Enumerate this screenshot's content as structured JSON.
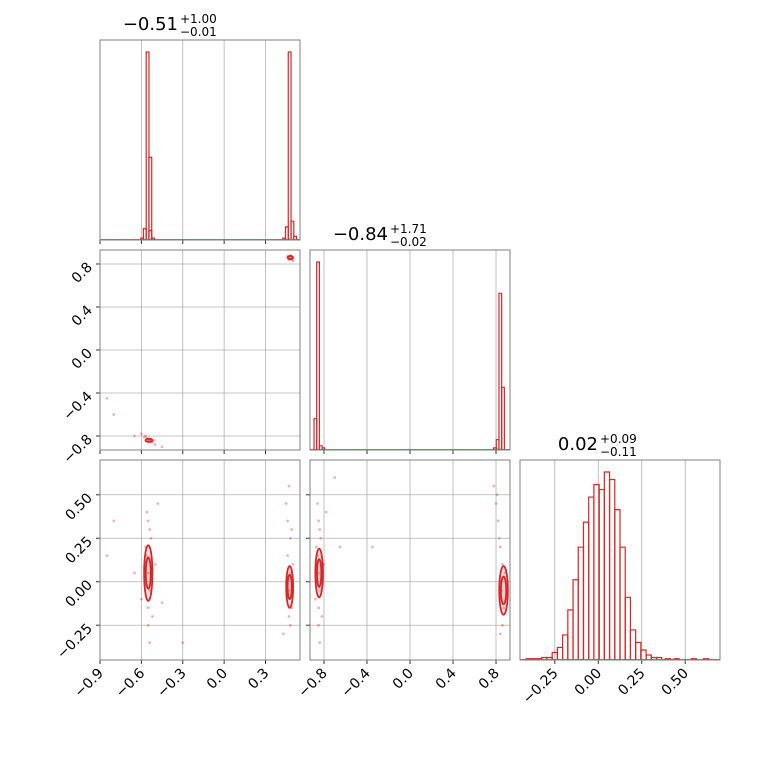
{
  "chart_data": {
    "type": "corner",
    "color": "#d62728",
    "grid": true,
    "parameters": [
      {
        "title": {
          "median": "−0.51",
          "upper": "+1.00",
          "lower": "−0.01"
        },
        "range": [
          -0.9,
          0.55
        ],
        "ticks": [
          -0.9,
          -0.6,
          -0.3,
          0.0,
          0.3
        ],
        "tick_labels": [
          "−0.9",
          "−0.6",
          "−0.3",
          "0.0",
          "0.3"
        ]
      },
      {
        "title": {
          "median": "−0.84",
          "upper": "+1.71",
          "lower": "−0.02"
        },
        "range": [
          -0.93,
          0.93
        ],
        "ticks": [
          -0.8,
          -0.4,
          0.0,
          0.4,
          0.8
        ],
        "tick_labels": [
          "−0.8",
          "−0.4",
          "0.0",
          "0.4",
          "0.8"
        ]
      },
      {
        "title": {
          "median": "0.02",
          "upper": "+0.09",
          "lower": "−0.11"
        },
        "range": [
          -0.45,
          0.7
        ],
        "ticks": [
          -0.25,
          0.0,
          0.25,
          0.5
        ],
        "tick_labels": [
          "−0.25",
          "0.00",
          "0.25",
          "0.50"
        ]
      }
    ],
    "histograms": [
      {
        "param": 0,
        "bins": [
          [
            -0.535,
            0.05
          ],
          [
            -0.555,
            1.0
          ],
          [
            -0.535,
            0.44
          ],
          [
            -0.515,
            0.01
          ],
          [
            -0.575,
            0.06
          ],
          [
            -0.595,
            0.01
          ],
          [
            0.455,
            0.07
          ],
          [
            0.475,
            1.0
          ],
          [
            0.495,
            0.1
          ],
          [
            0.515,
            0.02
          ],
          [
            0.435,
            0.01
          ]
        ]
      },
      {
        "param": 1,
        "bins": [
          [
            -0.88,
            0.15
          ],
          [
            -0.855,
            0.9
          ],
          [
            -0.83,
            0.02
          ],
          [
            -0.805,
            0.01
          ],
          [
            0.79,
            0.01
          ],
          [
            0.815,
            0.05
          ],
          [
            0.84,
            0.75
          ],
          [
            0.865,
            0.3
          ]
        ]
      },
      {
        "param": 2,
        "bins": [
          [
            -0.4,
            0.005
          ],
          [
            -0.37,
            0.005
          ],
          [
            -0.34,
            0.005
          ],
          [
            -0.31,
            0.01
          ],
          [
            -0.28,
            0.01
          ],
          [
            -0.25,
            0.03
          ],
          [
            -0.22,
            0.05
          ],
          [
            -0.19,
            0.1
          ],
          [
            -0.16,
            0.2
          ],
          [
            -0.13,
            0.32
          ],
          [
            -0.1,
            0.45
          ],
          [
            -0.07,
            0.55
          ],
          [
            -0.04,
            0.65
          ],
          [
            -0.01,
            0.7
          ],
          [
            0.02,
            0.68
          ],
          [
            0.05,
            0.75
          ],
          [
            0.08,
            0.72
          ],
          [
            0.11,
            0.6
          ],
          [
            0.14,
            0.45
          ],
          [
            0.17,
            0.25
          ],
          [
            0.2,
            0.12
          ],
          [
            0.23,
            0.07
          ],
          [
            0.26,
            0.04
          ],
          [
            0.29,
            0.02
          ],
          [
            0.32,
            0.01
          ],
          [
            0.35,
            0.01
          ],
          [
            0.4,
            0.005
          ],
          [
            0.45,
            0.005
          ],
          [
            0.55,
            0.005
          ],
          [
            0.62,
            0.005
          ]
        ]
      }
    ],
    "scatter_panels": [
      {
        "x_param": 0,
        "y_param": 1,
        "points": [
          [
            -0.55,
            -0.83
          ],
          [
            -0.54,
            -0.84
          ],
          [
            -0.56,
            -0.82
          ],
          [
            -0.53,
            -0.85
          ],
          [
            -0.52,
            -0.86
          ],
          [
            -0.57,
            -0.8
          ],
          [
            -0.6,
            -0.78
          ],
          [
            -0.5,
            -0.88
          ],
          [
            -0.45,
            -0.9
          ],
          [
            -0.58,
            -0.81
          ],
          [
            -0.55,
            -0.85
          ],
          [
            -0.54,
            -0.83
          ],
          [
            -0.51,
            -0.84
          ],
          [
            0.47,
            0.86
          ],
          [
            0.48,
            0.85
          ],
          [
            0.49,
            0.84
          ],
          [
            0.46,
            0.87
          ],
          [
            0.5,
            0.83
          ],
          [
            0.48,
            0.88
          ],
          [
            0.47,
            0.84
          ],
          [
            0.49,
            0.86
          ],
          [
            -0.85,
            -0.45
          ],
          [
            -0.8,
            -0.6
          ],
          [
            -0.65,
            -0.8
          ]
        ],
        "contours": [
          {
            "center": [
              -0.545,
              -0.84
            ],
            "radii": [
              0.025,
              0.015
            ]
          },
          {
            "center": [
              0.48,
              0.86
            ],
            "radii": [
              0.02,
              0.015
            ]
          }
        ]
      },
      {
        "x_param": 0,
        "y_param": 2,
        "points": [
          [
            -0.55,
            0.05
          ],
          [
            -0.54,
            -0.05
          ],
          [
            -0.56,
            0.15
          ],
          [
            -0.53,
            0.25
          ],
          [
            -0.55,
            -0.15
          ],
          [
            -0.54,
            0.3
          ],
          [
            -0.57,
            0.2
          ],
          [
            -0.52,
            -0.2
          ],
          [
            -0.55,
            0.35
          ],
          [
            -0.6,
            -0.1
          ],
          [
            -0.5,
            0.1
          ],
          [
            -0.45,
            -0.12
          ],
          [
            -0.55,
            -0.25
          ],
          [
            -0.56,
            0.4
          ],
          [
            -0.54,
            -0.35
          ],
          [
            -0.65,
            0.05
          ],
          [
            -0.8,
            0.35
          ],
          [
            -0.85,
            0.15
          ],
          [
            -0.48,
            0.45
          ],
          [
            -0.3,
            -0.35
          ],
          [
            0.47,
            -0.05
          ],
          [
            0.48,
            0.05
          ],
          [
            0.46,
            0.15
          ],
          [
            0.49,
            -0.15
          ],
          [
            0.48,
            0.25
          ],
          [
            0.47,
            -0.2
          ],
          [
            0.5,
            0.1
          ],
          [
            0.46,
            0.35
          ],
          [
            0.47,
            0.55
          ],
          [
            0.48,
            -0.25
          ],
          [
            0.45,
            0.45
          ],
          [
            0.49,
            0.3
          ],
          [
            0.43,
            -0.3
          ]
        ],
        "contours": [
          {
            "center": [
              -0.55,
              0.05
            ],
            "radii": [
              0.03,
              0.16
            ]
          },
          {
            "center": [
              -0.55,
              0.05
            ],
            "radii": [
              0.018,
              0.09
            ]
          },
          {
            "center": [
              0.475,
              -0.03
            ],
            "radii": [
              0.025,
              0.12
            ]
          },
          {
            "center": [
              0.475,
              -0.03
            ],
            "radii": [
              0.015,
              0.07
            ]
          }
        ]
      },
      {
        "x_param": 1,
        "y_param": 2,
        "points": [
          [
            -0.85,
            0.05
          ],
          [
            -0.84,
            -0.05
          ],
          [
            -0.86,
            0.15
          ],
          [
            -0.83,
            0.25
          ],
          [
            -0.85,
            -0.15
          ],
          [
            -0.84,
            0.3
          ],
          [
            -0.87,
            0.2
          ],
          [
            -0.82,
            -0.2
          ],
          [
            -0.85,
            0.35
          ],
          [
            -0.88,
            -0.1
          ],
          [
            -0.8,
            0.1
          ],
          [
            -0.78,
            0.4
          ],
          [
            -0.85,
            -0.25
          ],
          [
            -0.86,
            0.45
          ],
          [
            -0.84,
            -0.35
          ],
          [
            -0.65,
            0.2
          ],
          [
            -0.7,
            0.6
          ],
          [
            -0.35,
            0.2
          ],
          [
            0.8,
            0.45
          ],
          [
            0.82,
            0.35
          ],
          [
            0.84,
            0.2
          ],
          [
            0.86,
            0.1
          ],
          [
            0.85,
            -0.05
          ],
          [
            0.87,
            -0.15
          ],
          [
            0.83,
            0.25
          ],
          [
            0.86,
            -0.25
          ],
          [
            0.88,
            0.05
          ],
          [
            0.84,
            -0.3
          ],
          [
            0.78,
            0.55
          ],
          [
            0.81,
            0.5
          ]
        ],
        "contours": [
          {
            "center": [
              -0.845,
              0.05
            ],
            "radii": [
              0.035,
              0.14
            ]
          },
          {
            "center": [
              -0.845,
              0.05
            ],
            "radii": [
              0.02,
              0.08
            ]
          },
          {
            "center": [
              0.87,
              -0.05
            ],
            "radii": [
              0.04,
              0.14
            ]
          },
          {
            "center": [
              0.87,
              -0.05
            ],
            "radii": [
              0.025,
              0.08
            ]
          }
        ]
      }
    ]
  }
}
